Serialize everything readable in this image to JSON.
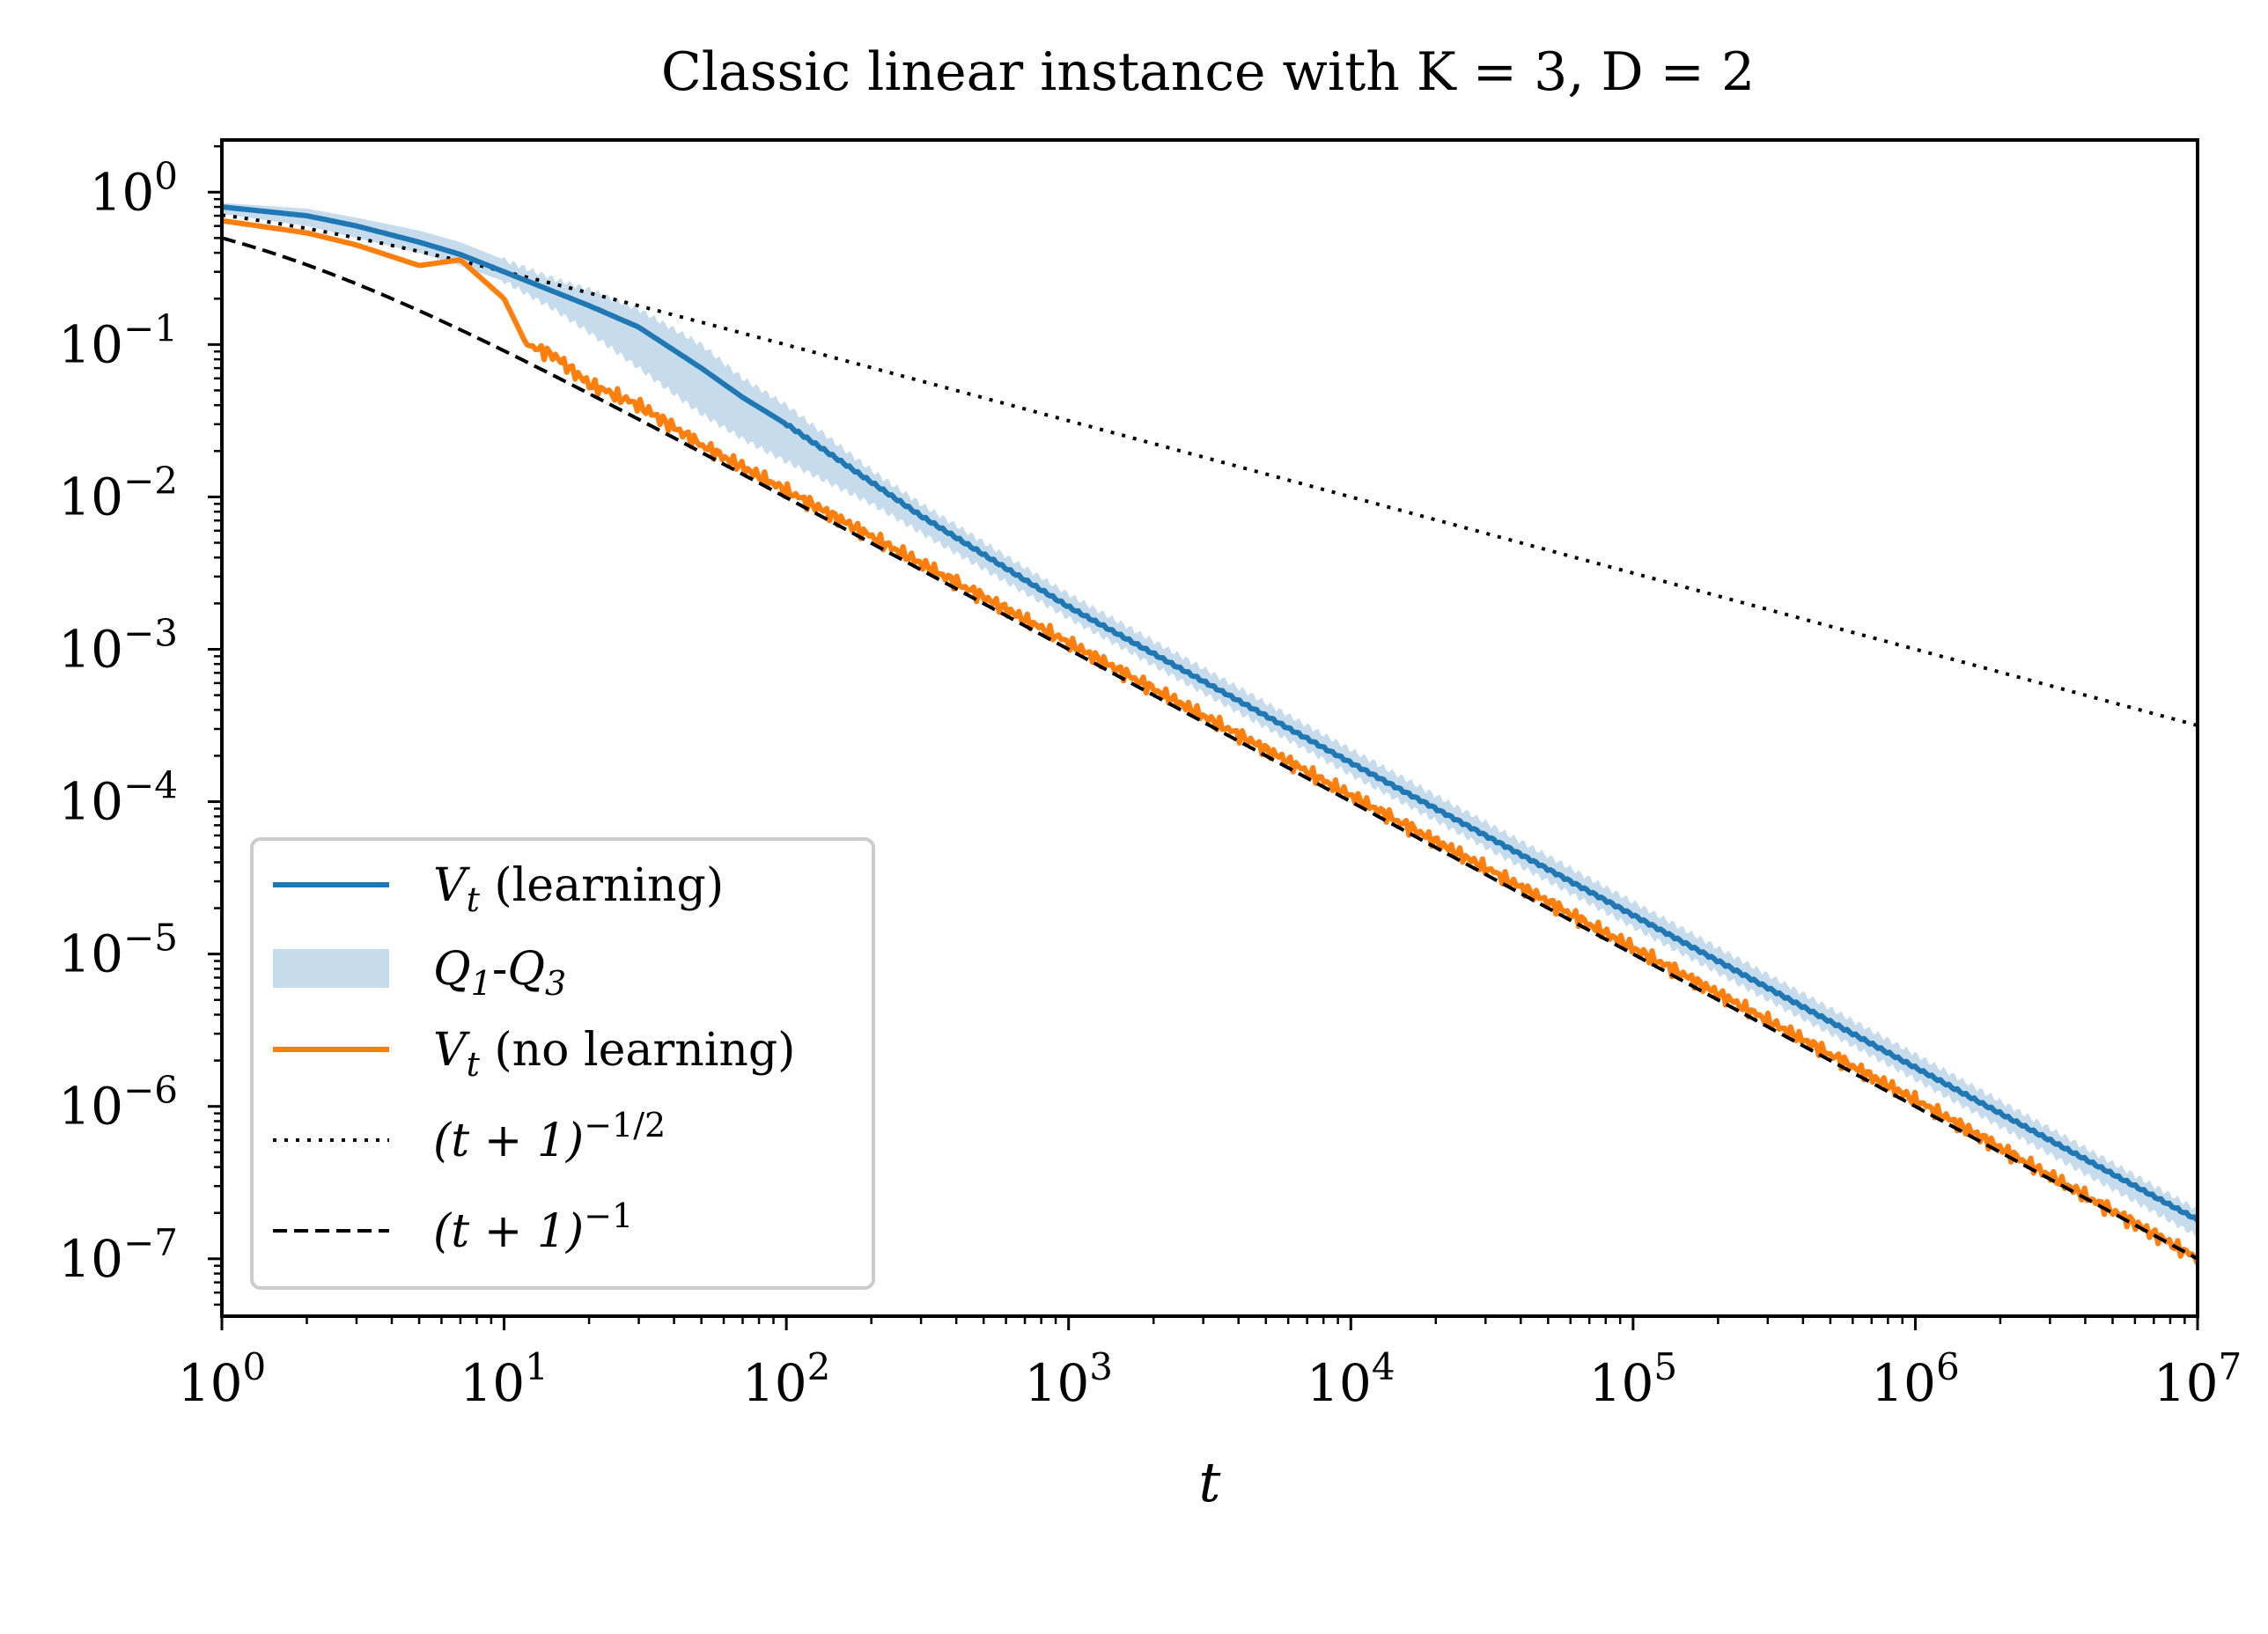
{
  "chart_data": {
    "type": "line",
    "title": "Classic linear instance with K = 3, D = 2",
    "xlabel": "t",
    "ylabel": "",
    "xscale": "log",
    "yscale": "log",
    "xlim": [
      1,
      10000000
    ],
    "ylim": [
      4.2e-08,
      2.2
    ],
    "grid": false,
    "legend_position": "lower-left",
    "x_ticks": [
      {
        "value": 1,
        "base": "10",
        "exp": "0"
      },
      {
        "value": 10,
        "base": "10",
        "exp": "1"
      },
      {
        "value": 100,
        "base": "10",
        "exp": "2"
      },
      {
        "value": 1000,
        "base": "10",
        "exp": "3"
      },
      {
        "value": 10000,
        "base": "10",
        "exp": "4"
      },
      {
        "value": 100000,
        "base": "10",
        "exp": "5"
      },
      {
        "value": 1000000,
        "base": "10",
        "exp": "6"
      },
      {
        "value": 10000000,
        "base": "10",
        "exp": "7"
      }
    ],
    "y_ticks": [
      {
        "value": 1,
        "base": "10",
        "exp": "0"
      },
      {
        "value": 0.1,
        "base": "10",
        "exp": "−1"
      },
      {
        "value": 0.01,
        "base": "10",
        "exp": "−2"
      },
      {
        "value": 0.001,
        "base": "10",
        "exp": "−3"
      },
      {
        "value": 0.0001,
        "base": "10",
        "exp": "−4"
      },
      {
        "value": 1e-05,
        "base": "10",
        "exp": "−5"
      },
      {
        "value": 1e-06,
        "base": "10",
        "exp": "−6"
      },
      {
        "value": 1e-07,
        "base": "10",
        "exp": "−7"
      }
    ],
    "series": [
      {
        "name": "V_t (learning)",
        "legend_math": "V",
        "legend_sub": "t",
        "legend_rest": "  (learning)",
        "color": "#1f77b4",
        "style": "solid",
        "x": [
          1,
          2,
          3,
          5,
          7,
          10,
          20,
          30,
          50,
          70,
          100,
          200,
          300,
          1000,
          10000,
          100000,
          1000000,
          10000000
        ],
        "y": [
          0.8,
          0.7,
          0.6,
          0.47,
          0.39,
          0.3,
          0.18,
          0.13,
          0.07,
          0.045,
          0.03,
          0.0125,
          0.0075,
          0.0019,
          0.00018,
          1.8e-05,
          1.8e-06,
          1.8e-07
        ]
      },
      {
        "name": "Q_1-Q_3",
        "legend_math": "Q",
        "legend_sub": "1",
        "legend_rest": "-",
        "legend_math2": "Q",
        "legend_sub2": "3",
        "color": "#c6dbec",
        "style": "band",
        "x": [
          1,
          2,
          3,
          5,
          7,
          10,
          15,
          20,
          30,
          50,
          70,
          100,
          200,
          300,
          1000,
          10000,
          100000,
          1000000,
          10000000
        ],
        "lower": [
          0.72,
          0.6,
          0.5,
          0.4,
          0.33,
          0.26,
          0.17,
          0.12,
          0.07,
          0.035,
          0.024,
          0.017,
          0.009,
          0.0058,
          0.0016,
          0.00015,
          1.5e-05,
          1.5e-06,
          1.4e-07
        ],
        "upper": [
          0.85,
          0.78,
          0.68,
          0.56,
          0.47,
          0.36,
          0.27,
          0.23,
          0.17,
          0.1,
          0.06,
          0.04,
          0.015,
          0.009,
          0.0023,
          0.00022,
          2.2e-05,
          2.2e-06,
          2.1e-07
        ]
      },
      {
        "name": "V_t (no learning)",
        "legend_math": "V",
        "legend_sub": "t",
        "legend_rest": "  (no learning)",
        "color": "#ff7f0e",
        "style": "solid",
        "x": [
          1,
          2,
          3,
          5,
          7,
          10,
          12,
          15,
          20,
          30,
          50,
          100,
          1000,
          10000,
          100000,
          1000000,
          10000000
        ],
        "y": [
          0.65,
          0.54,
          0.45,
          0.33,
          0.36,
          0.2,
          0.1,
          0.085,
          0.055,
          0.04,
          0.022,
          0.011,
          0.0011,
          0.00011,
          1.1e-05,
          1.1e-06,
          1e-07
        ]
      },
      {
        "name": "(t+1)^-1/2",
        "legend_math": "(t + 1)",
        "legend_sup": "−1/2",
        "color": "#000000",
        "style": "dotted",
        "exponent": -0.5
      },
      {
        "name": "(t+1)^-1",
        "legend_math": "(t + 1)",
        "legend_sup": "−1",
        "color": "#000000",
        "style": "dashed",
        "exponent": -1
      }
    ]
  }
}
